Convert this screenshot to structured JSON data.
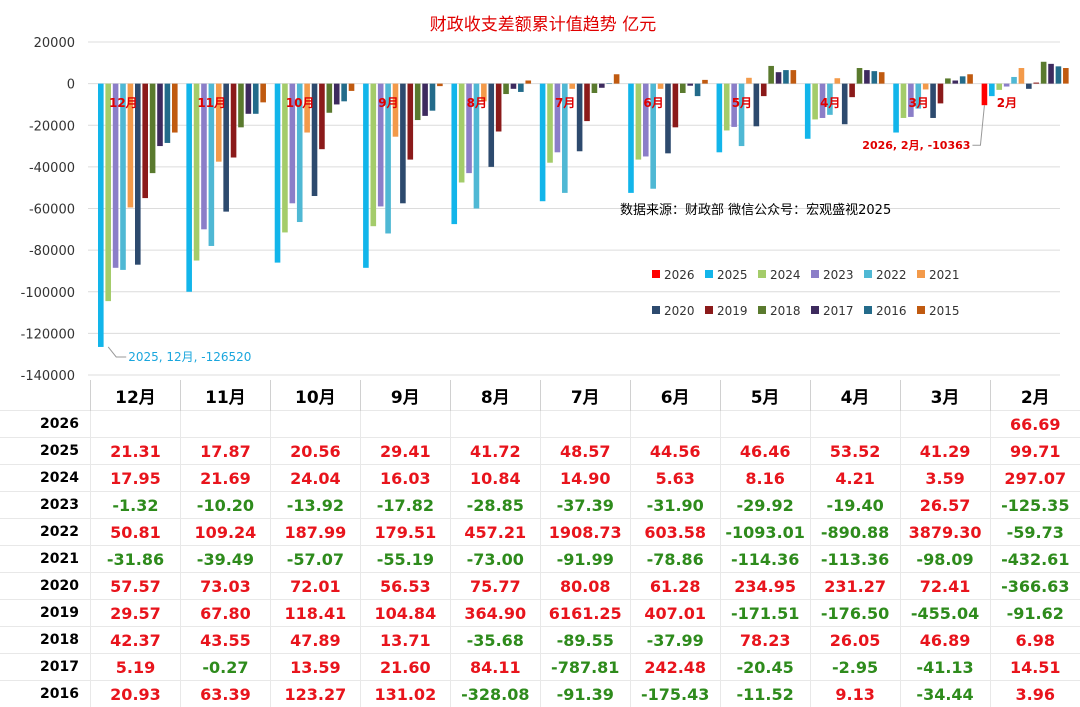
{
  "chart_data": {
    "type": "bar",
    "title": "财政收支差额累计值趋势 亿元",
    "note": "数据来源：财政部 微信公众号：宏观盛视2025",
    "categories": [
      "12月",
      "11月",
      "10月",
      "9月",
      "8月",
      "7月",
      "6月",
      "5月",
      "4月",
      "3月",
      "2月"
    ],
    "ylim": [
      -140000,
      20000
    ],
    "yticks": [
      20000,
      0,
      -20000,
      -40000,
      -60000,
      -80000,
      -100000,
      -120000,
      -140000
    ],
    "grid": true,
    "legend_position": "right-middle",
    "series": [
      {
        "name": "2026",
        "color": "#ff0000",
        "values": [
          null,
          null,
          null,
          null,
          null,
          null,
          null,
          null,
          null,
          null,
          -10363
        ]
      },
      {
        "name": "2025",
        "color": "#12b5ea",
        "values": [
          -126520,
          -100000,
          -86000,
          -88500,
          -67500,
          -56500,
          -52500,
          -33000,
          -26500,
          -23500,
          -6000
        ]
      },
      {
        "name": "2024",
        "color": "#a4cc6a",
        "values": [
          -104500,
          -85000,
          -71500,
          -68500,
          -47500,
          -38000,
          -36500,
          -22500,
          -17200,
          -16500,
          -3000
        ]
      },
      {
        "name": "2023",
        "color": "#8b7ec8",
        "values": [
          -88500,
          -70000,
          -57500,
          -59000,
          -43000,
          -33000,
          -35000,
          -20800,
          -16500,
          -16000,
          -1400
        ]
      },
      {
        "name": "2022",
        "color": "#4fb8d4",
        "values": [
          -89500,
          -78000,
          -66500,
          -72000,
          -60000,
          -52500,
          -50500,
          -30000,
          -15000,
          -12000,
          3200
        ]
      },
      {
        "name": "2021",
        "color": "#f39a4a",
        "values": [
          -59500,
          -37500,
          -23500,
          -25500,
          -8500,
          -2500,
          -2500,
          2800,
          2600,
          -2800,
          7500
        ]
      },
      {
        "name": "2020",
        "color": "#2d4a6e",
        "values": [
          -87000,
          -61500,
          -54000,
          -57500,
          -40000,
          -32500,
          -33500,
          -20500,
          -19500,
          -16500,
          -2500
        ]
      },
      {
        "name": "2019",
        "color": "#8b1a1a",
        "values": [
          -55000,
          -35500,
          -31500,
          -36500,
          -23000,
          -18000,
          -21000,
          -6000,
          -6500,
          -9500,
          500
        ]
      },
      {
        "name": "2018",
        "color": "#5a7a2e",
        "values": [
          -43000,
          -21000,
          -14000,
          -17500,
          -5000,
          -4500,
          -4500,
          8500,
          7500,
          2500,
          10500
        ]
      },
      {
        "name": "2017",
        "color": "#3d2a5e",
        "values": [
          -30000,
          -14500,
          -10000,
          -15500,
          -2500,
          -2000,
          -1000,
          5500,
          6500,
          1500,
          9500
        ]
      },
      {
        "name": "2016",
        "color": "#236b8a",
        "values": [
          -28500,
          -14500,
          -8500,
          -13000,
          -4000,
          100,
          -6000,
          6500,
          6000,
          3500,
          8300
        ]
      },
      {
        "name": "2015",
        "color": "#c05a10",
        "values": [
          -23500,
          -9000,
          -3500,
          -1200,
          1500,
          4500,
          1800,
          6500,
          5500,
          4500,
          7500
        ]
      }
    ],
    "annotations": [
      {
        "text": "2025, 12月, -126520",
        "series": "2025",
        "category": "12月"
      },
      {
        "text": "2026, 2月, -10363",
        "series": "2026",
        "category": "2月"
      }
    ]
  },
  "table": {
    "months": [
      "12月",
      "11月",
      "10月",
      "9月",
      "8月",
      "7月",
      "6月",
      "5月",
      "4月",
      "3月",
      "2月"
    ],
    "rows": [
      {
        "year": "2026",
        "values": [
          "",
          "",
          "",
          "",
          "",
          "",
          "",
          "",
          "",
          "",
          "66.69"
        ]
      },
      {
        "year": "2025",
        "values": [
          "21.31",
          "17.87",
          "20.56",
          "29.41",
          "41.72",
          "48.57",
          "44.56",
          "46.46",
          "53.52",
          "41.29",
          "99.71"
        ]
      },
      {
        "year": "2024",
        "values": [
          "17.95",
          "21.69",
          "24.04",
          "16.03",
          "10.84",
          "14.90",
          "5.63",
          "8.16",
          "4.21",
          "3.59",
          "297.07"
        ]
      },
      {
        "year": "2023",
        "values": [
          "-1.32",
          "-10.20",
          "-13.92",
          "-17.82",
          "-28.85",
          "-37.39",
          "-31.90",
          "-29.92",
          "-19.40",
          "26.57",
          "-125.35"
        ]
      },
      {
        "year": "2022",
        "values": [
          "50.81",
          "109.24",
          "187.99",
          "179.51",
          "457.21",
          "1908.73",
          "603.58",
          "-1093.01",
          "-890.88",
          "3879.30",
          "-59.73"
        ]
      },
      {
        "year": "2021",
        "values": [
          "-31.86",
          "-39.49",
          "-57.07",
          "-55.19",
          "-73.00",
          "-91.99",
          "-78.86",
          "-114.36",
          "-113.36",
          "-98.09",
          "-432.61"
        ]
      },
      {
        "year": "2020",
        "values": [
          "57.57",
          "73.03",
          "72.01",
          "56.53",
          "75.77",
          "80.08",
          "61.28",
          "234.95",
          "231.27",
          "72.41",
          "-366.63"
        ]
      },
      {
        "year": "2019",
        "values": [
          "29.57",
          "67.80",
          "118.41",
          "104.84",
          "364.90",
          "6161.25",
          "407.01",
          "-171.51",
          "-176.50",
          "-455.04",
          "-91.62"
        ]
      },
      {
        "year": "2018",
        "values": [
          "42.37",
          "43.55",
          "47.89",
          "13.71",
          "-35.68",
          "-89.55",
          "-37.99",
          "78.23",
          "26.05",
          "46.89",
          "6.98"
        ]
      },
      {
        "year": "2017",
        "values": [
          "5.19",
          "-0.27",
          "13.59",
          "21.60",
          "84.11",
          "-787.81",
          "242.48",
          "-20.45",
          "-2.95",
          "-41.13",
          "14.51"
        ]
      },
      {
        "year": "2016",
        "values": [
          "20.93",
          "63.39",
          "123.27",
          "131.02",
          "-328.08",
          "-91.39",
          "-175.43",
          "-11.52",
          "9.13",
          "-34.44",
          "3.96"
        ]
      }
    ]
  }
}
